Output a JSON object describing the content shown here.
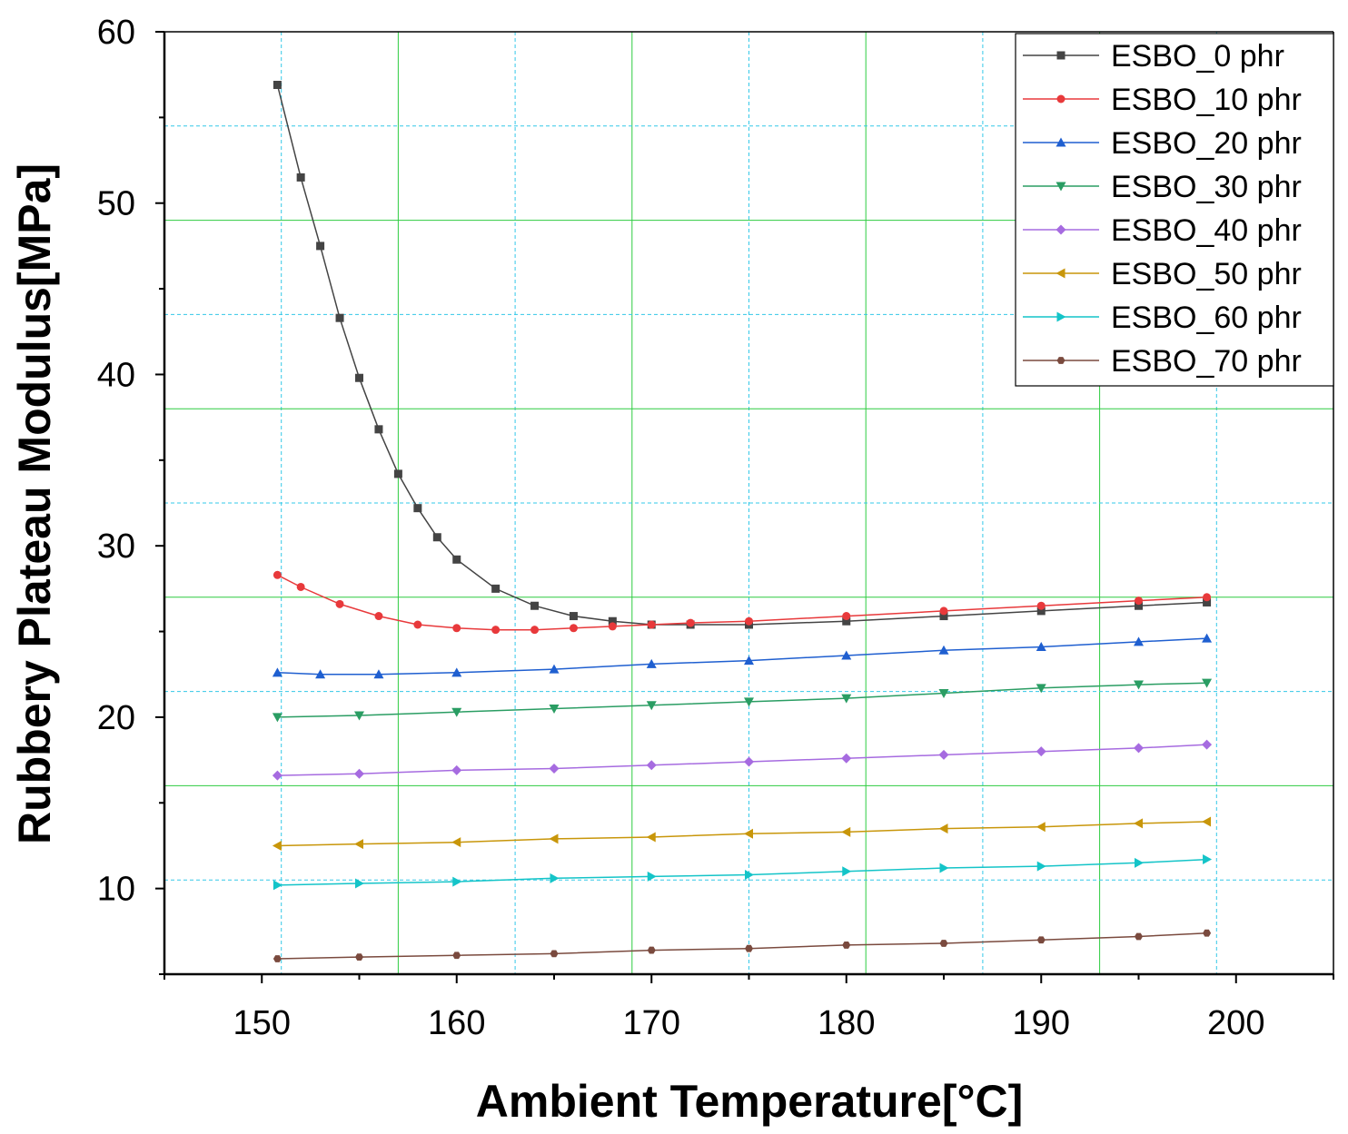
{
  "chart_data": {
    "type": "line",
    "title": "",
    "xlabel": "Ambient Temperature[°C]",
    "ylabel": "Rubbery Plateau Modulus[MPa]",
    "xlim": [
      145,
      205
    ],
    "ylim": [
      5,
      60
    ],
    "x_ticks": [
      150,
      160,
      170,
      180,
      190,
      200
    ],
    "y_ticks": [
      10,
      20,
      30,
      40,
      50,
      60
    ],
    "x_tick_labels": [
      "150",
      "160",
      "170",
      "180",
      "190",
      "200"
    ],
    "y_tick_labels": [
      "10",
      "20",
      "30",
      "40",
      "50",
      "60"
    ],
    "grid": true,
    "legend_position": "top-right",
    "series": [
      {
        "name": "ESBO_0 phr",
        "color": "#444444",
        "marker": "square",
        "x": [
          150.8,
          152,
          153,
          154,
          155,
          156,
          157,
          158,
          159,
          160,
          162,
          164,
          166,
          168,
          170,
          172,
          175,
          180,
          185,
          190,
          195,
          198.5
        ],
        "y": [
          56.9,
          51.5,
          47.5,
          43.3,
          39.8,
          36.8,
          34.2,
          32.2,
          30.5,
          29.2,
          27.5,
          26.5,
          25.9,
          25.6,
          25.4,
          25.4,
          25.4,
          25.6,
          25.9,
          26.2,
          26.5,
          26.7
        ]
      },
      {
        "name": "ESBO_10 phr",
        "color": "#e8393b",
        "marker": "circle",
        "x": [
          150.8,
          152,
          154,
          156,
          158,
          160,
          162,
          164,
          166,
          168,
          170,
          172,
          175,
          180,
          185,
          190,
          195,
          198.5
        ],
        "y": [
          28.3,
          27.6,
          26.6,
          25.9,
          25.4,
          25.2,
          25.1,
          25.1,
          25.2,
          25.3,
          25.4,
          25.5,
          25.6,
          25.9,
          26.2,
          26.5,
          26.8,
          27.0
        ]
      },
      {
        "name": "ESBO_20 phr",
        "color": "#1f5fd0",
        "marker": "triangle-up",
        "x": [
          150.8,
          153,
          156,
          160,
          165,
          170,
          175,
          180,
          185,
          190,
          195,
          198.5
        ],
        "y": [
          22.6,
          22.5,
          22.5,
          22.6,
          22.8,
          23.1,
          23.3,
          23.6,
          23.9,
          24.1,
          24.4,
          24.6
        ]
      },
      {
        "name": "ESBO_30 phr",
        "color": "#2a9d63",
        "marker": "triangle-down",
        "x": [
          150.8,
          155,
          160,
          165,
          170,
          175,
          180,
          185,
          190,
          195,
          198.5
        ],
        "y": [
          20.0,
          20.1,
          20.3,
          20.5,
          20.7,
          20.9,
          21.1,
          21.4,
          21.7,
          21.9,
          22.0
        ]
      },
      {
        "name": "ESBO_40 phr",
        "color": "#a66be0",
        "marker": "diamond",
        "x": [
          150.8,
          155,
          160,
          165,
          170,
          175,
          180,
          185,
          190,
          195,
          198.5
        ],
        "y": [
          16.6,
          16.7,
          16.9,
          17.0,
          17.2,
          17.4,
          17.6,
          17.8,
          18.0,
          18.2,
          18.4
        ]
      },
      {
        "name": "ESBO_50 phr",
        "color": "#c8960a",
        "marker": "triangle-left",
        "x": [
          150.8,
          155,
          160,
          165,
          170,
          175,
          180,
          185,
          190,
          195,
          198.5
        ],
        "y": [
          12.5,
          12.6,
          12.7,
          12.9,
          13.0,
          13.2,
          13.3,
          13.5,
          13.6,
          13.8,
          13.9
        ]
      },
      {
        "name": "ESBO_60 phr",
        "color": "#14c4c8",
        "marker": "triangle-right",
        "x": [
          150.8,
          155,
          160,
          165,
          170,
          175,
          180,
          185,
          190,
          195,
          198.5
        ],
        "y": [
          10.2,
          10.3,
          10.4,
          10.6,
          10.7,
          10.8,
          11.0,
          11.2,
          11.3,
          11.5,
          11.7
        ]
      },
      {
        "name": "ESBO_70 phr",
        "color": "#7a4a3e",
        "marker": "hexagon",
        "x": [
          150.8,
          155,
          160,
          165,
          170,
          175,
          180,
          185,
          190,
          195,
          198.5
        ],
        "y": [
          5.9,
          6.0,
          6.1,
          6.2,
          6.4,
          6.5,
          6.7,
          6.8,
          7.0,
          7.2,
          7.4
        ]
      }
    ],
    "gridlines": {
      "solid_color": "#2ecc40",
      "dashed_color": "#33c8e8",
      "solid_x": [
        157,
        169,
        181,
        193
      ],
      "dashed_x": [
        151,
        163,
        175,
        187,
        199
      ],
      "solid_y": [
        16,
        27,
        38,
        49
      ],
      "dashed_y": [
        10.5,
        21.5,
        32.5,
        43.5,
        54.5
      ]
    }
  }
}
